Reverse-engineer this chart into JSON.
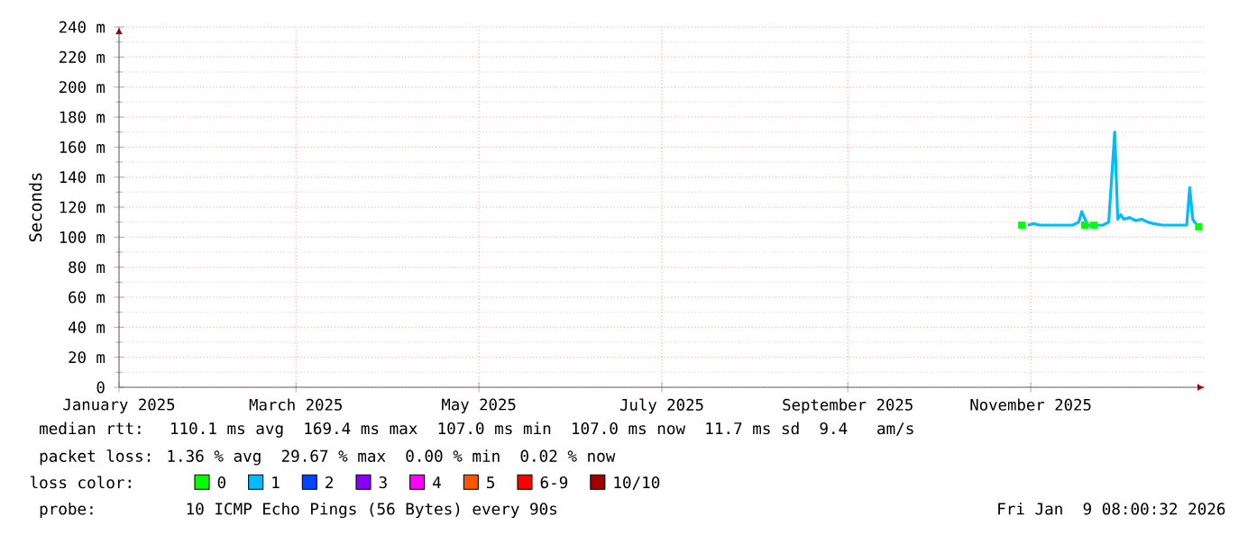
{
  "chart_data": {
    "type": "line",
    "ylabel": "Seconds",
    "legend_title": "loss color:",
    "legend": "bottom",
    "grid": true,
    "xlim": [
      "2025-01-01",
      "2025-12-29"
    ],
    "xticks": [
      {
        "value": "2025-01-01",
        "label": "January 2025"
      },
      {
        "value": "2025-03-01",
        "label": "March 2025"
      },
      {
        "value": "2025-05-01",
        "label": "May 2025"
      },
      {
        "value": "2025-07-01",
        "label": "July 2025"
      },
      {
        "value": "2025-09-01",
        "label": "September 2025"
      },
      {
        "value": "2025-11-01",
        "label": "November 2025"
      }
    ],
    "ylim": [
      0,
      240
    ],
    "yticks": [
      0,
      {
        "value": 20,
        "label": "20 m"
      },
      {
        "value": 40,
        "label": "40 m"
      },
      {
        "value": 60,
        "label": "60 m"
      },
      {
        "value": 80,
        "label": "80 m"
      },
      {
        "value": 100,
        "label": "100 m"
      },
      {
        "value": 120,
        "label": "120 m"
      },
      {
        "value": 140,
        "label": "140 m"
      },
      {
        "value": 160,
        "label": "160 m"
      },
      {
        "value": 180,
        "label": "180 m"
      },
      {
        "value": 200,
        "label": "200 m"
      },
      {
        "value": 220,
        "label": "220 m"
      },
      {
        "value": 240,
        "label": "240 m"
      }
    ],
    "series": [
      {
        "name": "0",
        "type": "scatter",
        "marker": "square",
        "color": "#00ff00",
        "x": [
          "2025-10-29",
          "2025-11-19",
          "2025-11-22",
          "2025-12-27"
        ],
        "values": [
          108,
          108,
          108,
          107
        ]
      },
      {
        "name": "1",
        "color": "#00bbff",
        "x": [
          "2025-10-31",
          "2025-11-02",
          "2025-11-04",
          "2025-11-06",
          "2025-11-09",
          "2025-11-12",
          "2025-11-15",
          "2025-11-17",
          "2025-11-18",
          "2025-11-20",
          "2025-11-23",
          "2025-11-25",
          "2025-11-27",
          "2025-11-29",
          "2025-11-30",
          "2025-12-01",
          "2025-12-02",
          "2025-12-04",
          "2025-12-06",
          "2025-12-08",
          "2025-12-10",
          "2025-12-12",
          "2025-12-15",
          "2025-12-18",
          "2025-12-21",
          "2025-12-23",
          "2025-12-24",
          "2025-12-25",
          "2025-12-26"
        ],
        "values": [
          108,
          109,
          108,
          108,
          108,
          108,
          108,
          110,
          117,
          108,
          108,
          108,
          110,
          170,
          112,
          115,
          112,
          113,
          111,
          112,
          110,
          109,
          108,
          108,
          108,
          108,
          133,
          112,
          109
        ]
      },
      {
        "name": "2",
        "color": "#0044ff"
      },
      {
        "name": "3",
        "color": "#8800ff"
      },
      {
        "name": "4",
        "color": "#ff00ff"
      },
      {
        "name": "5",
        "color": "#ff5500"
      },
      {
        "name": "6-9",
        "color": "#ff0000"
      },
      {
        "name": "10/10",
        "color": "#a10000"
      }
    ],
    "annotations": [
      "median rtt:  110.1 ms avg  169.4 ms max  107.0 ms min  107.0 ms now  11.7 ms sd  9.4   am/s",
      "packet loss: 1.36 % avg  29.67 % max  0.00 % min  0.02 % now",
      "probe:       10 ICMP Echo Pings (56 Bytes) every 90s",
      "Fri Jan  9 08:00:32 2026"
    ]
  }
}
